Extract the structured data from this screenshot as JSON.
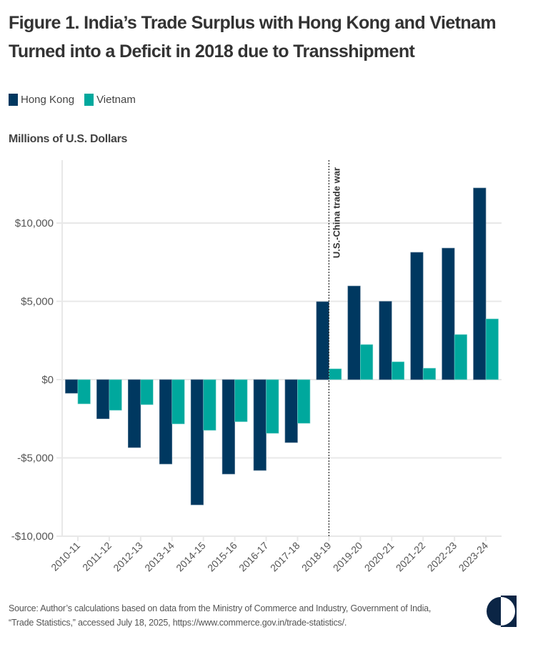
{
  "header": {
    "title": "Figure 1. India’s Trade Surplus with Hong Kong and Vietnam Turned into a Deficit in 2018 due to Transshipment"
  },
  "colors": {
    "hong_kong": "#003860",
    "vietnam": "#00A89D",
    "gridline": "#e8e8e8",
    "annotation_line": "#333333",
    "logo": "#0b2545"
  },
  "chart_data": {
    "type": "bar",
    "title": "Figure 1. India’s Trade Surplus with Hong Kong and Vietnam Turned into a Deficit in 2018 due to Transshipment",
    "xlabel": "",
    "ylabel": "Millions of U.S. Dollars",
    "ylim": [
      -10000,
      14000
    ],
    "yticks": [
      -10000,
      -5000,
      0,
      5000,
      10000
    ],
    "ytick_labels": [
      "-$10,000",
      "-$5,000",
      "$0",
      "$5,000",
      "$10,000"
    ],
    "grid": true,
    "legend_position": "top-left",
    "categories": [
      "2010-11",
      "2011-12",
      "2012-13",
      "2013-14",
      "2014-15",
      "2015-16",
      "2016-17",
      "2017-18",
      "2018-19",
      "2019-20",
      "2020-21",
      "2021-22",
      "2022-23",
      "2023-24"
    ],
    "series": [
      {
        "name": "Hong Kong",
        "color": "#003860",
        "values": [
          -870,
          -2500,
          -4340,
          -5390,
          -8000,
          -6030,
          -5800,
          -4020,
          4980,
          5980,
          5000,
          8130,
          8400,
          12240
        ]
      },
      {
        "name": "Vietnam",
        "color": "#00A89D",
        "values": [
          -1550,
          -1960,
          -1600,
          -2830,
          -3240,
          -2690,
          -3430,
          -2790,
          690,
          2240,
          1140,
          730,
          2880,
          3880
        ]
      }
    ],
    "annotations": [
      {
        "type": "vertical-dotted-line",
        "at_category": "2018-19",
        "label": "U.S.-China trade war"
      }
    ]
  },
  "footer": {
    "source_line1": "Source: Author’s calculations based on data from the Ministry of Commerce and Industry, Government of India,",
    "source_line2": "“Trade Statistics,” accessed July 18, 2025, https://www.commerce.gov.in/trade-statistics/."
  },
  "logo": {
    "icon": "half-moon-logo-icon"
  }
}
